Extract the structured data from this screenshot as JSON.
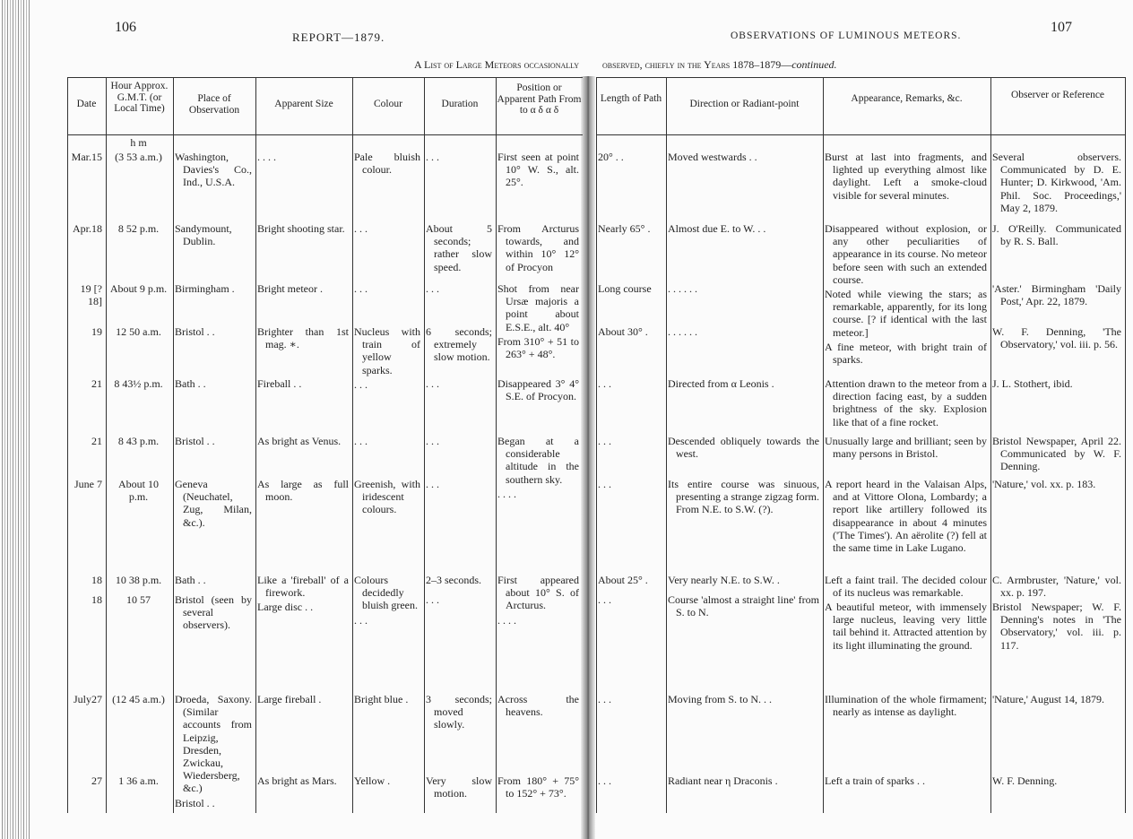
{
  "left_page": {
    "page_number": "106",
    "running_head": "REPORT—1879.",
    "caption": "A List of Large Meteors occasionally"
  },
  "right_page": {
    "page_number": "107",
    "running_head": "OBSERVATIONS OF LUMINOUS METEORS.",
    "caption": "observed, chiefly in the Years 1878–1879—",
    "caption_italic": "continued."
  },
  "headers": [
    "Date",
    "Hour Approx. G.M.T. (or Local Time)",
    "Place of Observation",
    "Apparent Size",
    "Colour",
    "Duration",
    "Position or Apparent Path From to α δ α δ",
    "Length of Path",
    "Direction or Radiant-point",
    "Appearance, Remarks, &c.",
    "Observer or Reference"
  ],
  "units_row": "h m",
  "rows": [
    [
      "Mar.15",
      "(3 53 a.m.)",
      "Washington, Davies's Co., Ind., U.S.A.",
      ". . . .",
      "Pale bluish colour.",
      ". . .",
      "First seen at point 10° W. S., alt. 25°.",
      "20° . .",
      "Moved westwards . .",
      "Burst at last into fragments, and lighted up everything almost like daylight. Left a smoke-cloud visible for several minutes.",
      "Several observers. Communicated by D. E. Hunter; D. Kirkwood, 'Am. Phil. Soc. Proceedings,' May 2, 1879."
    ],
    [
      "Apr.18",
      "8 52 p.m.",
      "Sandymount, Dublin.",
      "Bright shooting star.",
      ". . .",
      "About 5 seconds; rather slow speed.",
      "From Arcturus towards, and within 10° 12° of Procyon",
      "Nearly 65° .",
      "Almost due E. to W. . .",
      "Disappeared without explosion, or any other peculiarities of appearance in its course. No meteor before seen with such an extended course.",
      "J. O'Reilly. Communicated by R. S. Ball."
    ],
    [
      "19 [? 18]",
      "About 9 p.m.",
      "Birmingham .",
      "Bright meteor .",
      ". . .",
      ". . .",
      "Shot from near Ursæ majoris a point about E.S.E., alt. 40°",
      "Long course",
      ". . . . . .",
      "Noted while viewing the stars; as remarkable, apparently, for its long course. [? if identical with the last meteor.]",
      "'Aster.' Birmingham 'Daily Post,' Apr. 22, 1879."
    ],
    [
      "19",
      "12 50 a.m.",
      "Bristol . .",
      "Brighter than 1st mag. ∗.",
      "Nucleus with train of yellow sparks.",
      "6 seconds; extremely slow motion.",
      "From 310° + 51 to 263° + 48°.",
      "About 30° .",
      ". . . . . .",
      "A fine meteor, with bright train of sparks.",
      "W. F. Denning, 'The Observatory,' vol. iii. p. 56."
    ],
    [
      "21",
      "8 43½ p.m.",
      "Bath . .",
      "Fireball . .",
      ". . .",
      ". . .",
      "Disappeared 3° 4° S.E. of Procyon.",
      ". . .",
      "Directed from α Leonis .",
      "Attention drawn to the meteor from a direction facing east, by a sudden brightness of the sky. Explosion like that of a fine rocket.",
      "J. L. Stothert, ibid."
    ],
    [
      "21",
      "8 43 p.m.",
      "Bristol . .",
      "As bright as Venus.",
      ". . .",
      ". . .",
      "Began at a considerable altitude in the southern sky.",
      ". . .",
      "Descended obliquely towards the west.",
      "Unusually large and brilliant; seen by many persons in Bristol.",
      "Bristol Newspaper, April 22. Communicated by W. F. Denning."
    ],
    [
      "June 7",
      "About 10 p.m.",
      "Geneva (Neuchatel, Zug, Milan, &c.).",
      "As large as full moon.",
      "Greenish, with iridescent colours.",
      ". . .",
      ". . . .",
      ". . .",
      "Its entire course was sinuous, presenting a strange zigzag form. From N.E. to S.W. (?).",
      "A report heard in the Valaisan Alps, and at Vittore Olona, Lombardy; a report like artillery followed its disappearance in about 4 minutes ('The Times'). An aërolite (?) fell at the same time in Lake Lugano.",
      "'Nature,' vol. xx. p. 183."
    ],
    [
      "18",
      "10 38 p.m.",
      "Bath . .",
      "Like a 'fireball' of a firework.",
      "Colours decidedly bluish green.",
      "2–3 seconds.",
      "First appeared about 10° S. of Arcturus.",
      "About 25° .",
      "Very nearly N.E. to S.W. .",
      "Left a faint trail. The decided colour of its nucleus was remarkable.",
      "C. Armbruster, 'Nature,' vol. xx. p. 197."
    ],
    [
      "18",
      "10 57",
      "Bristol (seen by several observers).",
      "Large disc . .",
      ". . .",
      ". . .",
      ". . . .",
      ". . .",
      "Course 'almost a straight line' from S. to N.",
      "A beautiful meteor, with immensely large nucleus, leaving very little tail behind it. Attracted attention by its light illuminating the ground.",
      "Bristol Newspaper; W. F. Denning's notes in 'The Observatory,' vol. iii. p. 117."
    ],
    [
      "July27",
      "(12 45 a.m.)",
      "Droeda, Saxony. (Similar accounts from Leipzig, Dresden, Zwickau, Wiedersberg, &c.)",
      "Large fireball .",
      "Bright blue .",
      "3 seconds; moved slowly.",
      "Across the heavens.",
      ". . .",
      "Moving from S. to N. . .",
      "Illumination of the whole firmament; nearly as intense as daylight.",
      "'Nature,' August 14, 1879."
    ],
    [
      "27",
      "1 36 a.m.",
      "Bristol . .",
      "As bright as Mars.",
      "Yellow .",
      "Very slow motion.",
      "From 180° + 75° to 152° + 73°.",
      ". . .",
      "Radiant near η Draconis .",
      "Left a train of sparks . .",
      "W. F. Denning."
    ]
  ]
}
